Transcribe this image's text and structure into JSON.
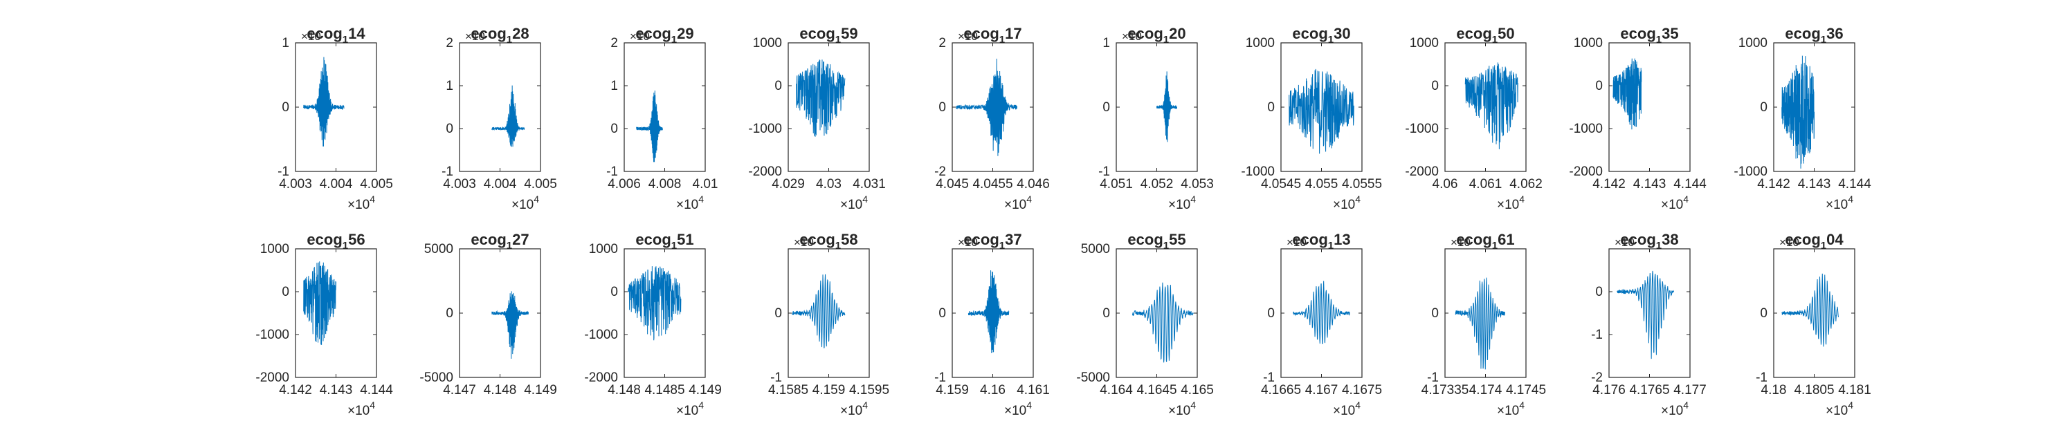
{
  "figure": {
    "series_color": "#0072BD",
    "axes_color": "#262626"
  },
  "chart_data": [
    {
      "type": "line",
      "title_base": "ecog",
      "title_sub": "1",
      "title_suffix": "14",
      "x_ticks": [
        "4.003",
        "4.004",
        "4.005"
      ],
      "xlim": [
        40030,
        40050
      ],
      "x_exponent": "×10",
      "x_exp_power": "4",
      "y_ticks": [
        "1",
        "0",
        "-1"
      ],
      "ylim": [
        -1,
        1
      ],
      "y_exponent": "×10",
      "series": [
        {
          "x_range": [
            40032,
            40042
          ],
          "center": 40037,
          "amp_neg": -0.7,
          "amp_pos": 0.95,
          "style": "burst"
        }
      ]
    },
    {
      "type": "line",
      "title_base": "ecog",
      "title_sub": "1",
      "title_suffix": "28",
      "x_ticks": [
        "4.003",
        "4.004",
        "4.005"
      ],
      "xlim": [
        40030,
        40050
      ],
      "x_exponent": "×10",
      "x_exp_power": "4",
      "y_ticks": [
        "2",
        "1",
        "0",
        "-1"
      ],
      "ylim": [
        -1,
        2
      ],
      "y_exponent": "×10",
      "series": [
        {
          "x_range": [
            40038,
            40046
          ],
          "center": 40043,
          "amp_neg": -0.55,
          "amp_pos": 1.1,
          "style": "burst"
        }
      ]
    },
    {
      "type": "line",
      "title_base": "ecog",
      "title_sub": "1",
      "title_suffix": "29",
      "x_ticks": [
        "4.006",
        "4.008",
        "4.01"
      ],
      "xlim": [
        40060,
        40100
      ],
      "x_exponent": "×10",
      "x_exp_power": "4",
      "y_ticks": [
        "2",
        "1",
        "0",
        "-1"
      ],
      "ylim": [
        -1,
        2
      ],
      "y_exponent": "×10",
      "series": [
        {
          "x_range": [
            40066,
            40079
          ],
          "center": 40075,
          "amp_neg": -0.95,
          "amp_pos": 1.05,
          "style": "burst"
        }
      ]
    },
    {
      "type": "line",
      "title_base": "ecog",
      "title_sub": "1",
      "title_suffix": "59",
      "x_ticks": [
        "4.029",
        "4.03",
        "4.031"
      ],
      "xlim": [
        40290,
        40310
      ],
      "x_exponent": "×10",
      "x_exp_power": "4",
      "y_ticks": [
        "1000",
        "0",
        "-1000",
        "-2000"
      ],
      "ylim": [
        -2000,
        1000
      ],
      "y_exponent": "",
      "series": [
        {
          "x_range": [
            40292,
            40304
          ],
          "center": 40298,
          "amp_neg": -1300,
          "amp_pos": 650,
          "style": "noise"
        }
      ]
    },
    {
      "type": "line",
      "title_base": "ecog",
      "title_sub": "1",
      "title_suffix": "17",
      "x_ticks": [
        "4.045",
        "4.0455",
        "4.046"
      ],
      "xlim": [
        40450,
        40460
      ],
      "x_exponent": "×10",
      "x_exp_power": "4",
      "y_ticks": [
        "2",
        "0",
        "-2"
      ],
      "ylim": [
        -2,
        2
      ],
      "y_exponent": "×10",
      "series": [
        {
          "x_range": [
            40450.5,
            40458
          ],
          "center": 40455.5,
          "amp_neg": -1.8,
          "amp_pos": 1.7,
          "style": "burst"
        }
      ]
    },
    {
      "type": "line",
      "title_base": "ecog",
      "title_sub": "1",
      "title_suffix": "20",
      "x_ticks": [
        "4.051",
        "4.052",
        "4.053"
      ],
      "xlim": [
        40510,
        40530
      ],
      "x_exponent": "×10",
      "x_exp_power": "4",
      "y_ticks": [
        "1",
        "0",
        "-1"
      ],
      "ylim": [
        -1,
        1
      ],
      "y_exponent": "×10",
      "series": [
        {
          "x_range": [
            40520,
            40525
          ],
          "center": 40522.5,
          "amp_neg": -0.6,
          "amp_pos": 0.6,
          "style": "burst"
        }
      ]
    },
    {
      "type": "line",
      "title_base": "ecog",
      "title_sub": "1",
      "title_suffix": "30",
      "x_ticks": [
        "4.0545",
        "4.055",
        "4.0555"
      ],
      "xlim": [
        40545,
        40555
      ],
      "x_exponent": "×10",
      "x_exp_power": "4",
      "y_ticks": [
        "1000",
        "0",
        "-1000"
      ],
      "ylim": [
        -1000,
        1000
      ],
      "y_exponent": "",
      "series": [
        {
          "x_range": [
            40546,
            40554
          ],
          "center": 40550,
          "amp_neg": -750,
          "amp_pos": 650,
          "style": "noise"
        }
      ]
    },
    {
      "type": "line",
      "title_base": "ecog",
      "title_sub": "1",
      "title_suffix": "50",
      "x_ticks": [
        "4.06",
        "4.061",
        "4.062"
      ],
      "xlim": [
        40600,
        40620
      ],
      "x_exponent": "×10",
      "x_exp_power": "4",
      "y_ticks": [
        "1000",
        "0",
        "-1000",
        "-2000"
      ],
      "ylim": [
        -2000,
        1000
      ],
      "y_exponent": "",
      "series": [
        {
          "x_range": [
            40605,
            40618
          ],
          "center": 40613,
          "amp_neg": -1500,
          "amp_pos": 550,
          "style": "noise"
        }
      ]
    },
    {
      "type": "line",
      "title_base": "ecog",
      "title_sub": "1",
      "title_suffix": "35",
      "x_ticks": [
        "4.142",
        "4.143",
        "4.144"
      ],
      "xlim": [
        41420,
        41440
      ],
      "x_exponent": "×10",
      "x_exp_power": "4",
      "y_ticks": [
        "1000",
        "0",
        "-1000",
        "-2000"
      ],
      "ylim": [
        -2000,
        1000
      ],
      "y_exponent": "",
      "series": [
        {
          "x_range": [
            41421,
            41428
          ],
          "center": 41426,
          "amp_neg": -1100,
          "amp_pos": 650,
          "style": "noise"
        }
      ]
    },
    {
      "type": "line",
      "title_base": "ecog",
      "title_sub": "1",
      "title_suffix": "36",
      "x_ticks": [
        "4.142",
        "4.143",
        "4.144"
      ],
      "xlim": [
        41420,
        41440
      ],
      "x_exponent": "×10",
      "x_exp_power": "4",
      "y_ticks": [
        "1000",
        "0",
        "-1000"
      ],
      "ylim": [
        -1000,
        1000
      ],
      "y_exponent": "",
      "series": [
        {
          "x_range": [
            41422,
            41430
          ],
          "center": 41427,
          "amp_neg": -1000,
          "amp_pos": 900,
          "style": "noise"
        }
      ]
    },
    {
      "type": "line",
      "title_base": "ecog",
      "title_sub": "1",
      "title_suffix": "56",
      "x_ticks": [
        "4.142",
        "4.143",
        "4.144"
      ],
      "xlim": [
        41420,
        41440
      ],
      "x_exponent": "×10",
      "x_exp_power": "4",
      "y_ticks": [
        "1000",
        "0",
        "-1000",
        "-2000"
      ],
      "ylim": [
        -2000,
        1000
      ],
      "y_exponent": "",
      "series": [
        {
          "x_range": [
            41422,
            41430
          ],
          "center": 41426,
          "amp_neg": -1300,
          "amp_pos": 750,
          "style": "noise"
        }
      ]
    },
    {
      "type": "line",
      "title_base": "ecog",
      "title_sub": "1",
      "title_suffix": "27",
      "x_ticks": [
        "4.147",
        "4.148",
        "4.149"
      ],
      "xlim": [
        41470,
        41490
      ],
      "x_exponent": "",
      "x_exp_power": "",
      "y_ticks": [
        "5000",
        "0",
        "-5000"
      ],
      "ylim": [
        -5000,
        5000
      ],
      "y_exponent": "",
      "series": [
        {
          "x_range": [
            41478,
            41487
          ],
          "center": 41483,
          "amp_neg": -4800,
          "amp_pos": 2000,
          "style": "burst"
        }
      ]
    },
    {
      "type": "line",
      "title_base": "ecog",
      "title_sub": "1",
      "title_suffix": "51",
      "x_ticks": [
        "4.148",
        "4.1485",
        "4.149"
      ],
      "xlim": [
        41480,
        41490
      ],
      "x_exponent": "×10",
      "x_exp_power": "4",
      "y_ticks": [
        "1000",
        "0",
        "-1000",
        "-2000"
      ],
      "ylim": [
        -2000,
        1000
      ],
      "y_exponent": "",
      "series": [
        {
          "x_range": [
            41480.5,
            41487
          ],
          "center": 41484,
          "amp_neg": -1200,
          "amp_pos": 650,
          "style": "noise"
        }
      ]
    },
    {
      "type": "line",
      "title_base": "ecog",
      "title_sub": "1",
      "title_suffix": "58",
      "x_ticks": [
        "4.1585",
        "4.159",
        "4.1595"
      ],
      "xlim": [
        41585,
        41595
      ],
      "x_exponent": "×10",
      "x_exp_power": "4",
      "y_ticks": [
        "0",
        "-1"
      ],
      "ylim": [
        -1,
        1
      ],
      "y_exponent": "×10",
      "series": [
        {
          "x_range": [
            41585.5,
            41592
          ],
          "center": 41589.5,
          "amp_neg": -0.6,
          "amp_pos": 0.65,
          "style": "wave"
        }
      ]
    },
    {
      "type": "line",
      "title_base": "ecog",
      "title_sub": "1",
      "title_suffix": "37",
      "x_ticks": [
        "4.159",
        "4.16",
        "4.161"
      ],
      "xlim": [
        41590,
        41610
      ],
      "x_exponent": "×10",
      "x_exp_power": "4",
      "y_ticks": [
        "0",
        "-1"
      ],
      "ylim": [
        -1,
        1
      ],
      "y_exponent": "×10",
      "series": [
        {
          "x_range": [
            41594,
            41604
          ],
          "center": 41600,
          "amp_neg": -0.8,
          "amp_pos": 0.9,
          "style": "burst"
        }
      ]
    },
    {
      "type": "line",
      "title_base": "ecog",
      "title_sub": "1",
      "title_suffix": "55",
      "x_ticks": [
        "4.164",
        "4.1645",
        "4.165"
      ],
      "xlim": [
        41640,
        41650
      ],
      "x_exponent": "×10",
      "x_exp_power": "4",
      "y_ticks": [
        "5000",
        "0",
        "-5000"
      ],
      "ylim": [
        -5000,
        5000
      ],
      "y_exponent": "",
      "series": [
        {
          "x_range": [
            41642,
            41649.5
          ],
          "center": 41646,
          "amp_neg": -4700,
          "amp_pos": 2700,
          "style": "wave"
        }
      ]
    },
    {
      "type": "line",
      "title_base": "ecog",
      "title_sub": "1",
      "title_suffix": "13",
      "x_ticks": [
        "4.1665",
        "4.167",
        "4.1675"
      ],
      "xlim": [
        41665,
        41675
      ],
      "x_exponent": "×10",
      "x_exp_power": "4",
      "y_ticks": [
        "0",
        "-1"
      ],
      "ylim": [
        -1,
        1
      ],
      "y_exponent": "×10",
      "series": [
        {
          "x_range": [
            41666.5,
            41673.5
          ],
          "center": 41670,
          "amp_neg": -0.55,
          "amp_pos": 0.55,
          "style": "wave"
        }
      ]
    },
    {
      "type": "line",
      "title_base": "ecog",
      "title_sub": "1",
      "title_suffix": "61",
      "x_ticks": [
        "4.17335",
        "4.174",
        "4.1745"
      ],
      "xlim": [
        41733.5,
        41745
      ],
      "x_exponent": "×10",
      "x_exp_power": "4",
      "y_ticks": [
        "0",
        "-1"
      ],
      "ylim": [
        -1,
        1
      ],
      "y_exponent": "×10",
      "series": [
        {
          "x_range": [
            41735,
            41742
          ],
          "center": 41739,
          "amp_neg": -0.95,
          "amp_pos": 0.6,
          "style": "wave"
        }
      ]
    },
    {
      "type": "line",
      "title_base": "ecog",
      "title_sub": "1",
      "title_suffix": "38",
      "x_ticks": [
        "4.176",
        "4.1765",
        "4.177"
      ],
      "xlim": [
        41760,
        41770
      ],
      "x_exponent": "×10",
      "x_exp_power": "4",
      "y_ticks": [
        "0",
        "-1",
        "-2"
      ],
      "ylim": [
        -2,
        1
      ],
      "y_exponent": "×10",
      "series": [
        {
          "x_range": [
            41761,
            41768
          ],
          "center": 41765.5,
          "amp_neg": -1.6,
          "amp_pos": 0.5,
          "style": "wave"
        }
      ]
    },
    {
      "type": "line",
      "title_base": "ecog",
      "title_sub": "1",
      "title_suffix": "04",
      "x_ticks": [
        "4.18",
        "4.1805",
        "4.181"
      ],
      "xlim": [
        41800,
        41810
      ],
      "x_exponent": "×10",
      "x_exp_power": "4",
      "y_ticks": [
        "0",
        "-1"
      ],
      "ylim": [
        -1,
        1
      ],
      "y_exponent": "×10",
      "series": [
        {
          "x_range": [
            41801,
            41808
          ],
          "center": 41806,
          "amp_neg": -0.55,
          "amp_pos": 0.65,
          "style": "wave"
        }
      ]
    }
  ]
}
